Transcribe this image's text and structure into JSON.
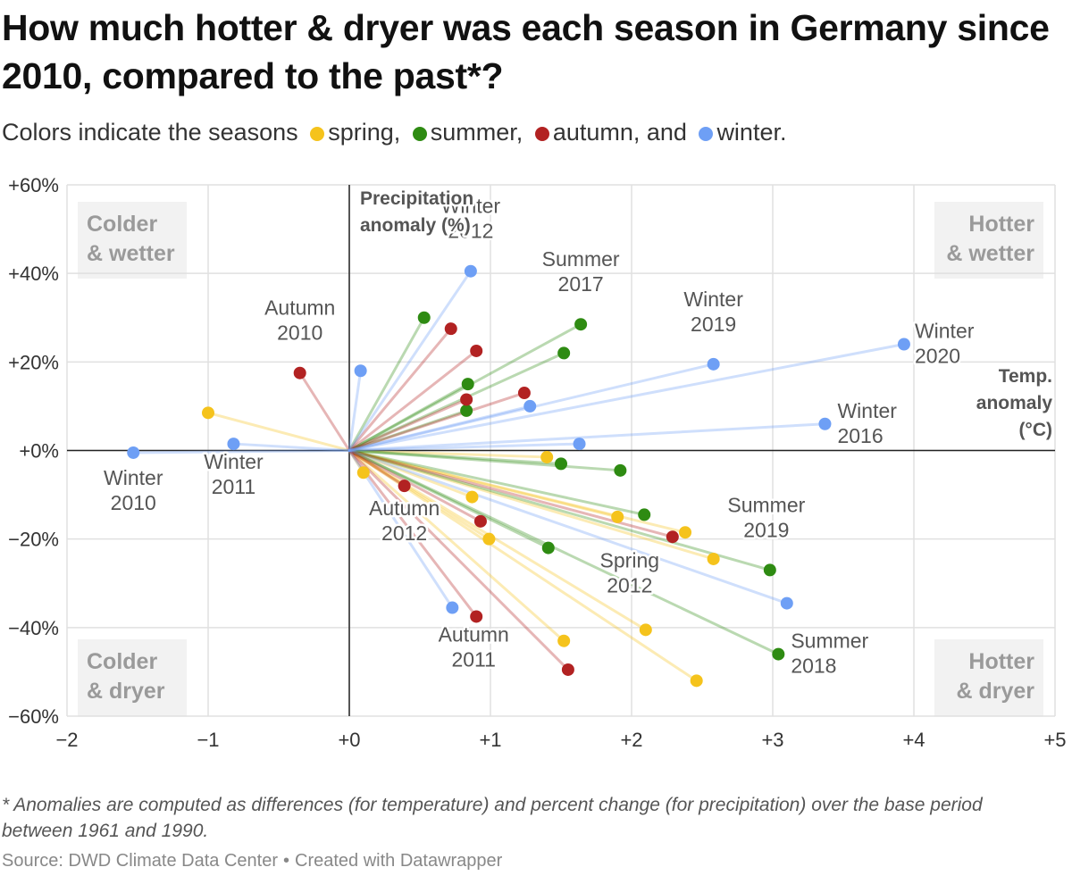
{
  "title": "How much hotter & dryer was each season in Germany since 2010, compared to the past*?",
  "subtitle": {
    "prefix": "Colors indicate the seasons",
    "spring": "spring,",
    "summer": "summer,",
    "autumn": "autumn, and",
    "winter": "winter."
  },
  "footnote": "* Anomalies are computed as differences (for temperature) and percent change (for precipitation) over the base period between 1961 and 1990.",
  "source": {
    "text": "Source: DWD Climate Data Center",
    "separator": "•",
    "credit": "Created with Datawrapper"
  },
  "colors": {
    "spring": "#f5c31c",
    "summer": "#2e8b12",
    "autumn": "#b22222",
    "winter": "#6e9ff5",
    "grid": "#e0e0e0",
    "axis": "#222222",
    "quadrant_bg": "#f2f2f2"
  },
  "chart_data": {
    "type": "scatter",
    "xlabel": "Temp. anomaly (°C)",
    "ylabel": "Precipitation anomaly (%)",
    "xlim": [
      -2,
      5
    ],
    "ylim": [
      -60,
      60
    ],
    "x_ticks": [
      -2,
      -1,
      0,
      1,
      2,
      3,
      4,
      5
    ],
    "x_tick_labels": [
      "−2",
      "−1",
      "+0",
      "+1",
      "+2",
      "+3",
      "+4",
      "+5"
    ],
    "y_ticks": [
      60,
      40,
      20,
      0,
      -20,
      -40,
      -60
    ],
    "y_tick_labels": [
      "+60%",
      "+40%",
      "+20%",
      "+0%",
      "−20%",
      "−40%",
      "−60%"
    ],
    "grid": true,
    "lines_from_origin": true,
    "quadrant_labels": {
      "top_left": [
        "Colder",
        "& wetter"
      ],
      "top_right": [
        "Hotter",
        "& wetter"
      ],
      "bottom_left": [
        "Colder",
        "& dryer"
      ],
      "bottom_right": [
        "Hotter",
        "& dryer"
      ]
    },
    "series": [
      {
        "name": "spring",
        "points": [
          {
            "x": -1.0,
            "y": 8.5
          },
          {
            "x": 0.1,
            "y": -5
          },
          {
            "x": 1.4,
            "y": -1.5
          },
          {
            "x": 0.87,
            "y": -10.5
          },
          {
            "x": 0.99,
            "y": -20
          },
          {
            "x": 1.9,
            "y": -15
          },
          {
            "x": 2.38,
            "y": -18.5
          },
          {
            "x": 2.58,
            "y": -24.5
          },
          {
            "x": 2.1,
            "y": -40.5,
            "label": [
              "Spring",
              "2012"
            ]
          },
          {
            "x": 1.52,
            "y": -43
          },
          {
            "x": 2.46,
            "y": -52
          }
        ]
      },
      {
        "name": "summer",
        "points": [
          {
            "x": 0.53,
            "y": 30
          },
          {
            "x": 0.84,
            "y": 15
          },
          {
            "x": 0.83,
            "y": 9
          },
          {
            "x": 1.64,
            "y": 28.5,
            "label": [
              "Summer",
              "2017"
            ]
          },
          {
            "x": 1.52,
            "y": 22
          },
          {
            "x": 1.5,
            "y": -3
          },
          {
            "x": 1.92,
            "y": -4.5
          },
          {
            "x": 2.09,
            "y": -14.5
          },
          {
            "x": 1.41,
            "y": -22
          },
          {
            "x": 2.98,
            "y": -27,
            "label": [
              "Summer",
              "2019"
            ]
          },
          {
            "x": 3.04,
            "y": -46,
            "label": [
              "Summer",
              "2018"
            ]
          }
        ]
      },
      {
        "name": "autumn",
        "points": [
          {
            "x": -0.35,
            "y": 17.5,
            "label": [
              "Autumn",
              "2010"
            ]
          },
          {
            "x": 0.72,
            "y": 27.5
          },
          {
            "x": 0.9,
            "y": 22.5
          },
          {
            "x": 0.83,
            "y": 11.5
          },
          {
            "x": 1.24,
            "y": 13
          },
          {
            "x": 0.39,
            "y": -8,
            "label": [
              "Autumn",
              "2012"
            ]
          },
          {
            "x": 0.93,
            "y": -16
          },
          {
            "x": 2.29,
            "y": -19.5
          },
          {
            "x": 0.9,
            "y": -37.5,
            "label": [
              "Autumn",
              "2011"
            ]
          },
          {
            "x": 1.55,
            "y": -49.5
          }
        ]
      },
      {
        "name": "winter",
        "points": [
          {
            "x": -1.53,
            "y": -0.5,
            "label": [
              "Winter",
              "2010"
            ]
          },
          {
            "x": -0.82,
            "y": 1.5,
            "label": [
              "Winter",
              "2011"
            ]
          },
          {
            "x": 0.08,
            "y": 18
          },
          {
            "x": 0.86,
            "y": 40.5,
            "label": [
              "Winter",
              "2012"
            ]
          },
          {
            "x": 1.28,
            "y": 10
          },
          {
            "x": 1.63,
            "y": 1.5
          },
          {
            "x": 2.58,
            "y": 19.5,
            "label": [
              "Winter",
              "2019"
            ]
          },
          {
            "x": 3.93,
            "y": 24,
            "label": [
              "Winter",
              "2020"
            ]
          },
          {
            "x": 3.37,
            "y": 6,
            "label": [
              "Winter",
              "2016"
            ]
          },
          {
            "x": 3.1,
            "y": -34.5
          },
          {
            "x": 0.73,
            "y": -35.5
          }
        ]
      }
    ]
  }
}
